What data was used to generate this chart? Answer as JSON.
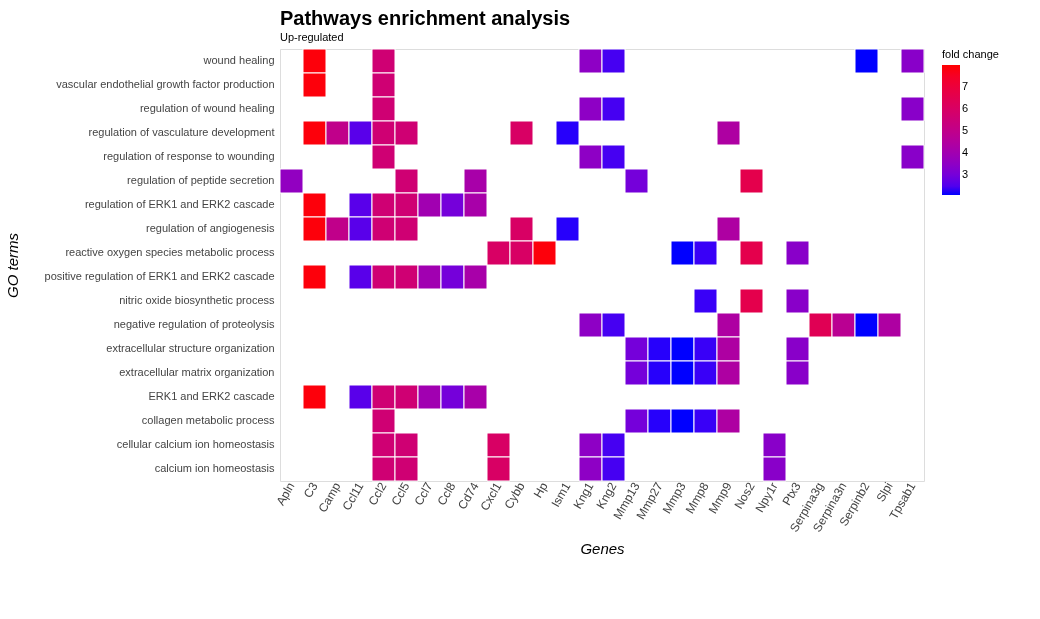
{
  "chart_data": {
    "type": "heatmap",
    "title": "Pathways enrichment analysis",
    "subtitle": "Up-regulated",
    "xlabel": "Genes",
    "ylabel": "GO terms",
    "clabel": "fold change",
    "categories": [
      "Apln",
      "C3",
      "Camp",
      "Ccl11",
      "Ccl2",
      "Ccl5",
      "Ccl7",
      "Ccl8",
      "Cd74",
      "Cxcl1",
      "Cybb",
      "Hp",
      "Ism1",
      "Kng1",
      "Kng2",
      "Mmp13",
      "Mmp27",
      "Mmp3",
      "Mmp8",
      "Mmp9",
      "Nos2",
      "Npy1r",
      "Ptx3",
      "Serpina3g",
      "Serpina3n",
      "Serpinb2",
      "Slpi",
      "Tpsab1"
    ],
    "y_categories": [
      "wound healing",
      "vascular endothelial growth factor production",
      "regulation of wound healing",
      "regulation of vasculature development",
      "regulation of response to wounding",
      "regulation of peptide secretion",
      "regulation of ERK1 and ERK2 cascade",
      "regulation of angiogenesis",
      "reactive oxygen species metabolic process",
      "positive regulation of ERK1 and ERK2 cascade",
      "nitric oxide biosynthetic process",
      "negative regulation of proteolysis",
      "extracellular structure organization",
      "extracellular matrix organization",
      "ERK1 and ERK2 cascade",
      "collagen metabolic process",
      "cellular calcium ion homeostasis",
      "calcium ion homeostasis"
    ],
    "cells": [
      [
        null,
        7.9,
        null,
        null,
        5.6,
        null,
        null,
        null,
        null,
        null,
        null,
        null,
        null,
        3.5,
        2.4,
        null,
        null,
        null,
        null,
        null,
        null,
        null,
        null,
        null,
        null,
        2.1,
        null,
        3.4
      ],
      [
        null,
        7.9,
        null,
        null,
        5.6,
        null,
        null,
        null,
        null,
        null,
        null,
        null,
        null,
        null,
        null,
        null,
        null,
        null,
        null,
        null,
        null,
        null,
        null,
        null,
        null,
        null,
        null,
        null
      ],
      [
        null,
        null,
        null,
        null,
        5.6,
        null,
        null,
        null,
        null,
        null,
        null,
        null,
        null,
        3.5,
        2.4,
        null,
        null,
        null,
        null,
        null,
        null,
        null,
        null,
        null,
        null,
        null,
        null,
        3.4
      ],
      [
        null,
        7.9,
        5.0,
        2.6,
        5.6,
        5.6,
        null,
        null,
        null,
        null,
        6.0,
        null,
        2.2,
        null,
        null,
        null,
        null,
        null,
        null,
        4.4,
        null,
        null,
        null,
        null,
        null,
        null,
        null,
        null
      ],
      [
        null,
        null,
        null,
        null,
        5.6,
        null,
        null,
        null,
        null,
        null,
        null,
        null,
        null,
        3.5,
        2.4,
        null,
        null,
        null,
        null,
        null,
        null,
        null,
        null,
        null,
        null,
        null,
        null,
        3.4
      ],
      [
        3.6,
        null,
        null,
        null,
        null,
        5.6,
        null,
        null,
        4.2,
        null,
        null,
        null,
        null,
        null,
        null,
        3.0,
        null,
        null,
        null,
        null,
        6.6,
        null,
        null,
        null,
        null,
        null,
        null,
        null
      ],
      [
        null,
        7.9,
        null,
        2.6,
        5.6,
        5.6,
        4.0,
        3.0,
        4.2,
        null,
        null,
        null,
        null,
        null,
        null,
        null,
        null,
        null,
        null,
        null,
        null,
        null,
        null,
        null,
        null,
        null,
        null,
        null
      ],
      [
        null,
        7.9,
        5.0,
        2.6,
        5.6,
        5.6,
        null,
        null,
        null,
        null,
        6.0,
        null,
        2.2,
        null,
        null,
        null,
        null,
        null,
        null,
        4.4,
        null,
        null,
        null,
        null,
        null,
        null,
        null,
        null
      ],
      [
        null,
        null,
        null,
        null,
        null,
        null,
        null,
        null,
        null,
        6.0,
        6.0,
        7.9,
        null,
        null,
        null,
        null,
        null,
        2.1,
        2.3,
        null,
        6.6,
        null,
        3.4,
        null,
        null,
        null,
        null,
        null
      ],
      [
        null,
        7.9,
        null,
        2.6,
        5.6,
        5.6,
        4.0,
        3.0,
        4.2,
        null,
        null,
        null,
        null,
        null,
        null,
        null,
        null,
        null,
        null,
        null,
        null,
        null,
        null,
        null,
        null,
        null,
        null,
        null
      ],
      [
        null,
        null,
        null,
        null,
        null,
        null,
        null,
        null,
        null,
        null,
        null,
        null,
        null,
        null,
        null,
        null,
        null,
        null,
        2.3,
        null,
        6.6,
        null,
        3.4,
        null,
        null,
        null,
        null,
        null
      ],
      [
        null,
        null,
        null,
        null,
        null,
        null,
        null,
        null,
        null,
        null,
        null,
        null,
        null,
        3.5,
        2.4,
        null,
        null,
        null,
        null,
        4.4,
        null,
        null,
        null,
        6.4,
        4.8,
        2.1,
        4.4,
        null
      ],
      [
        null,
        null,
        null,
        null,
        null,
        null,
        null,
        null,
        null,
        null,
        null,
        null,
        null,
        null,
        null,
        3.0,
        2.2,
        2.1,
        2.3,
        4.4,
        null,
        null,
        3.4,
        null,
        null,
        null,
        null,
        null
      ],
      [
        null,
        null,
        null,
        null,
        null,
        null,
        null,
        null,
        null,
        null,
        null,
        null,
        null,
        null,
        null,
        3.0,
        2.2,
        2.1,
        2.3,
        4.4,
        null,
        null,
        3.4,
        null,
        null,
        null,
        null,
        null
      ],
      [
        null,
        7.9,
        null,
        2.6,
        5.6,
        5.6,
        4.0,
        3.0,
        4.2,
        null,
        null,
        null,
        null,
        null,
        null,
        null,
        null,
        null,
        null,
        null,
        null,
        null,
        null,
        null,
        null,
        null,
        null,
        null
      ],
      [
        null,
        null,
        null,
        null,
        5.6,
        null,
        null,
        null,
        null,
        null,
        null,
        null,
        null,
        null,
        null,
        3.0,
        2.2,
        2.1,
        2.3,
        4.4,
        null,
        null,
        null,
        null,
        null,
        null,
        null,
        null
      ],
      [
        null,
        null,
        null,
        null,
        5.6,
        5.6,
        null,
        null,
        null,
        6.0,
        null,
        null,
        null,
        3.5,
        2.4,
        null,
        null,
        null,
        null,
        null,
        null,
        3.4,
        null,
        null,
        null,
        null,
        null,
        null
      ],
      [
        null,
        null,
        null,
        null,
        5.6,
        5.6,
        null,
        null,
        null,
        6.0,
        null,
        null,
        null,
        3.5,
        2.4,
        null,
        null,
        null,
        null,
        null,
        null,
        3.4,
        null,
        null,
        null,
        null,
        null,
        null
      ]
    ],
    "clim": [
      2.1,
      8.0
    ],
    "cticks": [
      3,
      4,
      5,
      6,
      7
    ],
    "colors": [
      "#0000ff",
      "#ff0000"
    ],
    "grid": false
  }
}
